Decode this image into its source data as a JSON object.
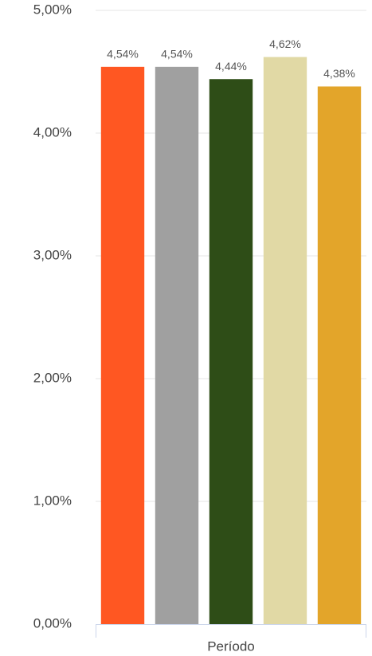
{
  "chart_data": {
    "type": "bar",
    "categories": [
      "Período"
    ],
    "series": [
      {
        "color": "#ff5722",
        "values": [
          4.54
        ],
        "value_labels": [
          "4,54%"
        ]
      },
      {
        "color": "#a0a0a0",
        "values": [
          4.54
        ],
        "value_labels": [
          "4,54%"
        ]
      },
      {
        "color": "#2e4d17",
        "values": [
          4.44
        ],
        "value_labels": [
          "4,44%"
        ]
      },
      {
        "color": "#e1d9a5",
        "values": [
          4.62
        ],
        "value_labels": [
          "4,62%"
        ]
      },
      {
        "color": "#e3a52a",
        "values": [
          4.38
        ],
        "value_labels": [
          "4,38%"
        ]
      }
    ],
    "ylim": [
      0,
      5
    ],
    "yticks": [
      {
        "value": 0,
        "label": "0,00%"
      },
      {
        "value": 1,
        "label": "1,00%"
      },
      {
        "value": 2,
        "label": "2,00%"
      },
      {
        "value": 3,
        "label": "3,00%"
      },
      {
        "value": 4,
        "label": "4,00%"
      },
      {
        "value": 5,
        "label": "5,00%"
      }
    ],
    "grid": true
  }
}
